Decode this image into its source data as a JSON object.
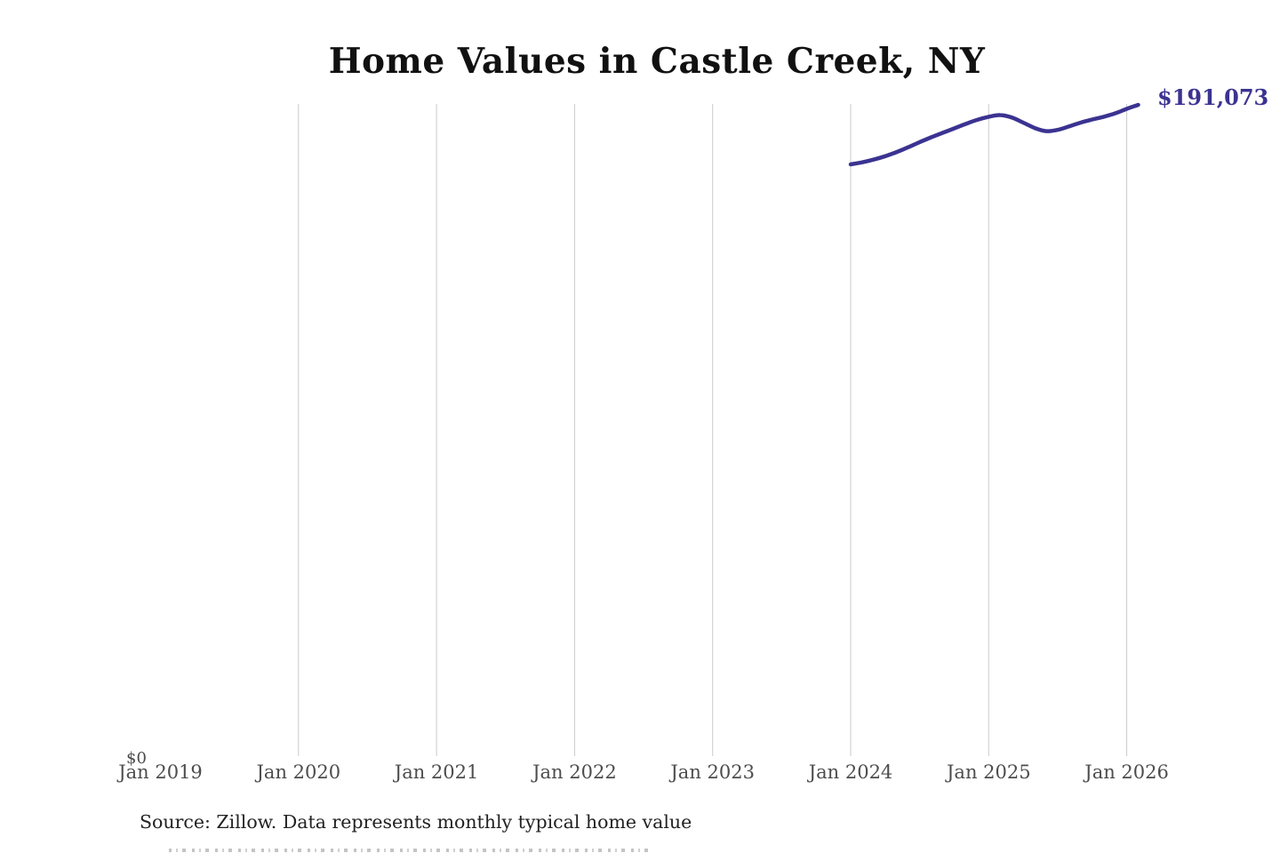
{
  "title": "Home Values in Castle Creek, NY",
  "end_label": "$191,073",
  "y_zero_label": "$0",
  "source_note": "Source: Zillow. Data represents monthly typical home value",
  "colors": {
    "line": "#3b3391",
    "end_label": "#3b3391",
    "grid": "#cbcbcb",
    "axis_text": "#4d4d4d",
    "title_text": "#111111",
    "source_text": "#222222"
  },
  "chart_data": {
    "type": "line",
    "title": "Home Values in Castle Creek, NY",
    "x": [
      "Jan 2024",
      "Feb 2024",
      "Mar 2024",
      "Apr 2024",
      "May 2024",
      "Jun 2024",
      "Jul 2024",
      "Aug 2024",
      "Sep 2024",
      "Oct 2024",
      "Nov 2024",
      "Dec 2024",
      "Jan 2025",
      "Feb 2025",
      "Mar 2025",
      "Apr 2025",
      "May 2025",
      "Jun 2025",
      "Jul 2025",
      "Aug 2025",
      "Sep 2025",
      "Oct 2025",
      "Nov 2025",
      "Dec 2025",
      "Jan 2026",
      "Feb 2026"
    ],
    "values": [
      173700,
      174300,
      175100,
      176100,
      177300,
      178700,
      180200,
      181600,
      182900,
      184200,
      185500,
      186700,
      187600,
      188100,
      187400,
      185900,
      184300,
      183400,
      183800,
      184800,
      185900,
      186800,
      187600,
      188600,
      189900,
      191073
    ],
    "x_axis_ticks": [
      "Jan 2019",
      "Jan 2020",
      "Jan 2021",
      "Jan 2022",
      "Jan 2023",
      "Jan 2024",
      "Jan 2025",
      "Jan 2026"
    ],
    "y_axis_ticks": [
      "$0"
    ],
    "xlabel": "",
    "ylabel": "",
    "xlim": [
      "Jan 2019",
      "Mar 2026"
    ],
    "ylim": [
      0,
      193000
    ],
    "grid": "vertical-only",
    "legend": "none",
    "end_annotation": "$191,073"
  }
}
